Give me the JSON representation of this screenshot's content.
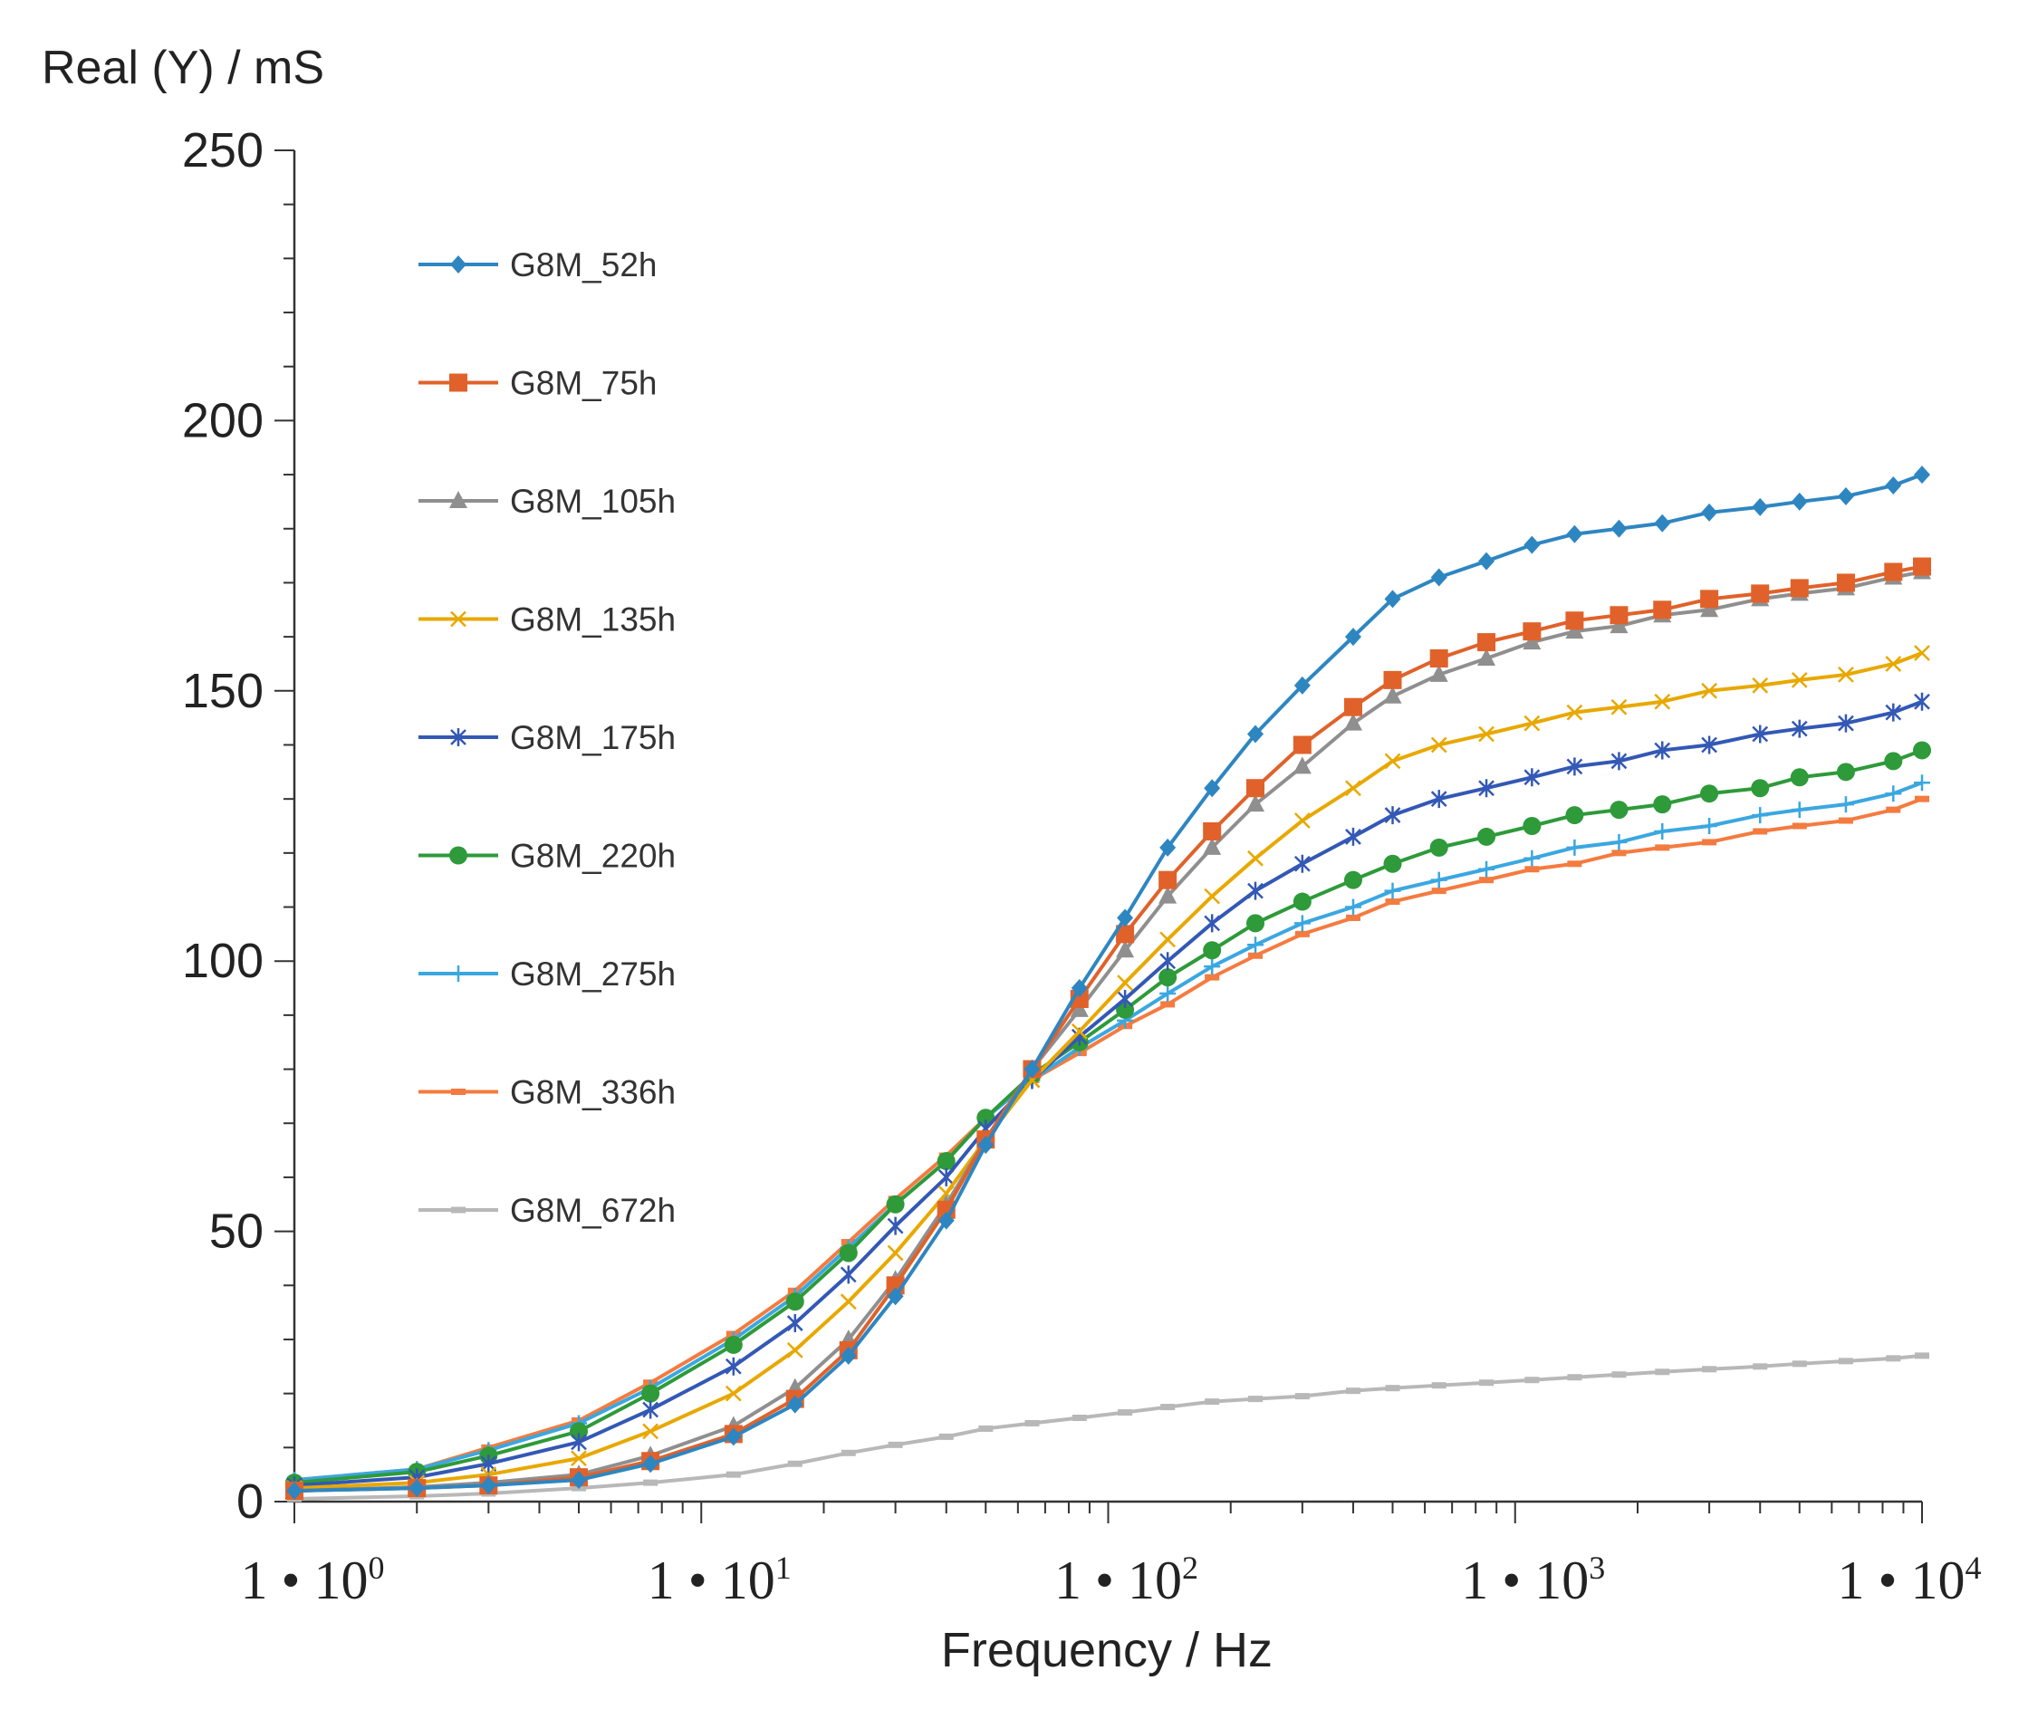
{
  "chart_data": {
    "type": "line",
    "title": "",
    "ylabel": "Real (Y) / mS",
    "xlabel": "Frequency / Hz",
    "xscale": "log",
    "xlim": [
      1,
      10000
    ],
    "ylim": [
      0,
      250
    ],
    "yticks": [
      {
        "value": 0,
        "label": "0"
      },
      {
        "value": 50,
        "label": "50"
      },
      {
        "value": 100,
        "label": "100"
      },
      {
        "value": 150,
        "label": "150"
      },
      {
        "value": 200,
        "label": "200"
      },
      {
        "value": 250,
        "label": "250"
      }
    ],
    "xticks": [
      {
        "value": 1,
        "base": "1 • 10",
        "exp": "0"
      },
      {
        "value": 10,
        "base": "1 • 10",
        "exp": "1"
      },
      {
        "value": 100,
        "base": "1 • 10",
        "exp": "2"
      },
      {
        "value": 1000,
        "base": "1 • 10",
        "exp": "3"
      },
      {
        "value": 10000,
        "base": "1 • 10",
        "exp": "4"
      }
    ],
    "grid": false,
    "legend_position": "top-left",
    "x": [
      1,
      2,
      3,
      5,
      7.5,
      12,
      17,
      23,
      30,
      40,
      50,
      65,
      85,
      110,
      140,
      180,
      230,
      300,
      400,
      500,
      650,
      850,
      1100,
      1400,
      1800,
      2300,
      3000,
      4000,
      5000,
      6500,
      8500,
      10000
    ],
    "series": [
      {
        "name": "G8M_52h",
        "color": "#2e86c1",
        "marker": "diamond",
        "values": [
          2,
          2.5,
          3,
          4,
          7,
          12,
          18,
          27,
          38,
          52,
          66,
          80,
          95,
          108,
          121,
          132,
          142,
          151,
          160,
          167,
          171,
          174,
          177,
          179,
          180,
          181,
          183,
          184,
          185,
          186,
          188,
          190
        ]
      },
      {
        "name": "G8M_75h",
        "color": "#e0622a",
        "marker": "square",
        "values": [
          2,
          2.5,
          3,
          4.5,
          7.5,
          12.5,
          19,
          28,
          40,
          54,
          67,
          80,
          93,
          105,
          115,
          124,
          132,
          140,
          147,
          152,
          156,
          159,
          161,
          163,
          164,
          165,
          167,
          168,
          169,
          170,
          172,
          173
        ]
      },
      {
        "name": "G8M_105h",
        "color": "#8f8f8f",
        "marker": "triangle",
        "values": [
          2,
          2.7,
          3.5,
          5,
          8.5,
          14,
          21,
          30,
          41,
          55,
          67,
          80,
          91,
          102,
          112,
          121,
          129,
          136,
          144,
          149,
          153,
          156,
          159,
          161,
          162,
          164,
          165,
          167,
          168,
          169,
          171,
          172
        ]
      },
      {
        "name": "G8M_135h",
        "color": "#e8a800",
        "marker": "x",
        "values": [
          2.5,
          3.5,
          5,
          8,
          13,
          20,
          28,
          37,
          46,
          57,
          67,
          78,
          87,
          96,
          104,
          112,
          119,
          126,
          132,
          137,
          140,
          142,
          144,
          146,
          147,
          148,
          150,
          151,
          152,
          153,
          155,
          157
        ]
      },
      {
        "name": "G8M_175h",
        "color": "#3358b5",
        "marker": "star",
        "values": [
          3,
          4.5,
          7,
          11,
          17,
          25,
          33,
          42,
          51,
          60,
          69,
          78,
          86,
          93,
          100,
          107,
          113,
          118,
          123,
          127,
          130,
          132,
          134,
          136,
          137,
          139,
          140,
          142,
          143,
          144,
          146,
          148
        ]
      },
      {
        "name": "G8M_220h",
        "color": "#2e9a3a",
        "marker": "circle",
        "values": [
          3.5,
          5.5,
          8.5,
          13,
          20,
          29,
          37,
          46,
          55,
          63,
          71,
          79,
          85,
          91,
          97,
          102,
          107,
          111,
          115,
          118,
          121,
          123,
          125,
          127,
          128,
          129,
          131,
          132,
          134,
          135,
          137,
          139
        ]
      },
      {
        "name": "G8M_275h",
        "color": "#3ba7e0",
        "marker": "plus",
        "values": [
          4,
          6,
          9.5,
          14.5,
          21,
          30,
          38,
          47,
          55,
          63,
          71,
          78,
          84,
          89,
          94,
          99,
          103,
          107,
          110,
          113,
          115,
          117,
          119,
          121,
          122,
          124,
          125,
          127,
          128,
          129,
          131,
          133
        ]
      },
      {
        "name": "G8M_336h",
        "color": "#f47b3f",
        "marker": "dash",
        "values": [
          4,
          6,
          10,
          15,
          22,
          31,
          39,
          48,
          56,
          64,
          71,
          78,
          83,
          88,
          92,
          97,
          101,
          105,
          108,
          111,
          113,
          115,
          117,
          118,
          120,
          121,
          122,
          124,
          125,
          126,
          128,
          130
        ]
      },
      {
        "name": "G8M_672h",
        "color": "#b8b8b8",
        "marker": "dash",
        "values": [
          0.5,
          1,
          1.5,
          2.5,
          3.5,
          5,
          7,
          9,
          10.5,
          12,
          13.5,
          14.5,
          15.5,
          16.5,
          17.5,
          18.5,
          19,
          19.5,
          20.5,
          21,
          21.5,
          22,
          22.5,
          23,
          23.5,
          24,
          24.5,
          25,
          25.5,
          26,
          26.5,
          27
        ]
      }
    ]
  }
}
